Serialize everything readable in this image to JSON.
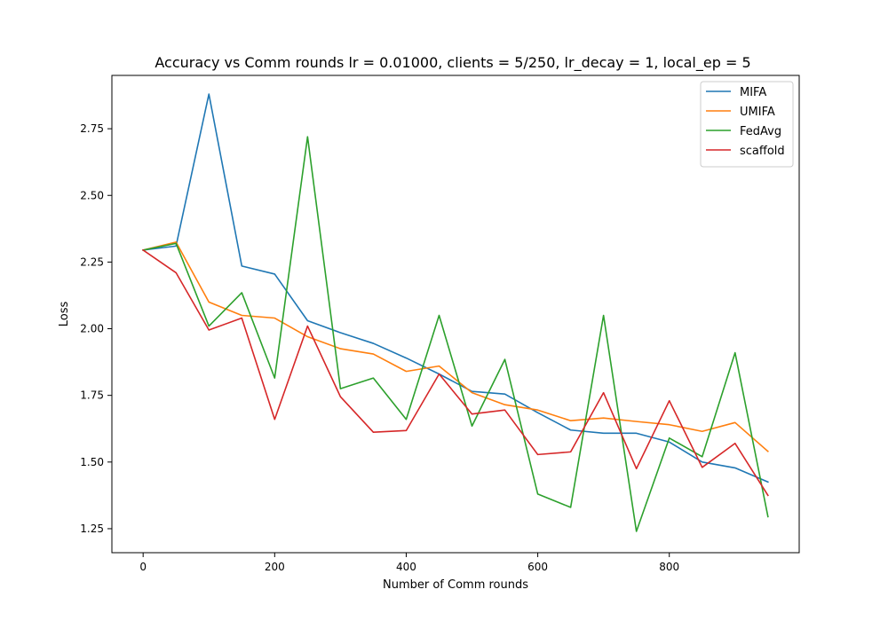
{
  "chart_data": {
    "type": "line",
    "title": "Accuracy vs Comm rounds lr = 0.01000, clients = 5/250, lr_decay = 1, local_ep = 5",
    "xlabel": "Number of Comm rounds",
    "ylabel": "Loss",
    "xlim": [
      -47.5,
      997.5
    ],
    "ylim": [
      1.16,
      2.95
    ],
    "xticks": [
      0,
      200,
      400,
      600,
      800
    ],
    "xtick_labels": [
      "0",
      "200",
      "400",
      "600",
      "800"
    ],
    "yticks": [
      1.25,
      1.5,
      1.75,
      2.0,
      2.25,
      2.5,
      2.75
    ],
    "ytick_labels": [
      "1.25",
      "1.50",
      "1.75",
      "2.00",
      "2.25",
      "2.50",
      "2.75"
    ],
    "grid": false,
    "legend_position": "top-right",
    "x": [
      0,
      50,
      100,
      150,
      200,
      250,
      300,
      350,
      400,
      450,
      500,
      550,
      600,
      650,
      700,
      750,
      800,
      850,
      900,
      950
    ],
    "series": [
      {
        "name": "MIFA",
        "color": "#1f77b4",
        "values": [
          2.295,
          2.31,
          2.88,
          2.235,
          2.205,
          2.03,
          1.985,
          1.945,
          1.89,
          1.83,
          1.765,
          1.755,
          1.685,
          1.62,
          1.608,
          1.608,
          1.575,
          1.5,
          1.478,
          1.425
        ]
      },
      {
        "name": "UMIFA",
        "color": "#ff7f0e",
        "values": [
          2.295,
          2.325,
          2.1,
          2.05,
          2.04,
          1.97,
          1.925,
          1.905,
          1.84,
          1.86,
          1.76,
          1.715,
          1.695,
          1.655,
          1.665,
          1.652,
          1.64,
          1.615,
          1.648,
          1.54
        ]
      },
      {
        "name": "FedAvg",
        "color": "#2ca02c",
        "values": [
          2.295,
          2.32,
          2.01,
          2.135,
          1.815,
          2.72,
          1.775,
          1.815,
          1.66,
          2.05,
          1.635,
          1.885,
          1.38,
          1.33,
          2.05,
          1.24,
          1.59,
          1.52,
          1.91,
          1.295
        ]
      },
      {
        "name": "scaffold",
        "color": "#d62728",
        "values": [
          2.295,
          2.21,
          1.995,
          2.04,
          1.66,
          2.01,
          1.745,
          1.612,
          1.618,
          1.83,
          1.68,
          1.695,
          1.528,
          1.538,
          1.76,
          1.475,
          1.73,
          1.48,
          1.57,
          1.375
        ]
      }
    ]
  }
}
